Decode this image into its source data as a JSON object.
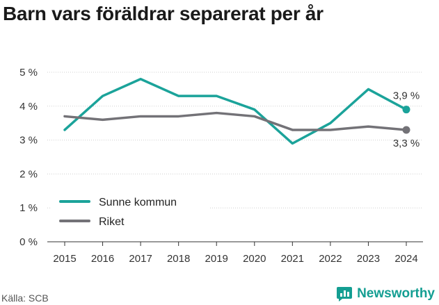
{
  "title": "Barn vars föräldrar separerat per år",
  "source": "Källa: SCB",
  "brand": {
    "name": "Newsworthy",
    "icon": "newsworthy-logo-icon",
    "color": "#149e92"
  },
  "chart_data": {
    "type": "line",
    "title": "Barn vars föräldrar separerat per år",
    "x": [
      "2015",
      "2016",
      "2017",
      "2018",
      "2019",
      "2020",
      "2021",
      "2022",
      "2023",
      "2024"
    ],
    "ylim": [
      0,
      5
    ],
    "yticks": [
      0,
      1,
      2,
      3,
      4,
      5
    ],
    "ytick_labels": [
      "0 %",
      "1 %",
      "2 %",
      "3 %",
      "4 %",
      "5 %"
    ],
    "grid": "horizontal",
    "legend_position": "lower-left",
    "series": [
      {
        "name": "Sunne kommun",
        "color": "#1ba39a",
        "values": [
          3.3,
          4.3,
          4.8,
          4.3,
          4.3,
          3.9,
          2.9,
          3.5,
          4.5,
          3.9
        ],
        "end_label": "3,9 %"
      },
      {
        "name": "Riket",
        "color": "#737277",
        "values": [
          3.7,
          3.6,
          3.7,
          3.7,
          3.8,
          3.7,
          3.3,
          3.3,
          3.4,
          3.3
        ],
        "end_label": "3,3 %"
      }
    ]
  }
}
